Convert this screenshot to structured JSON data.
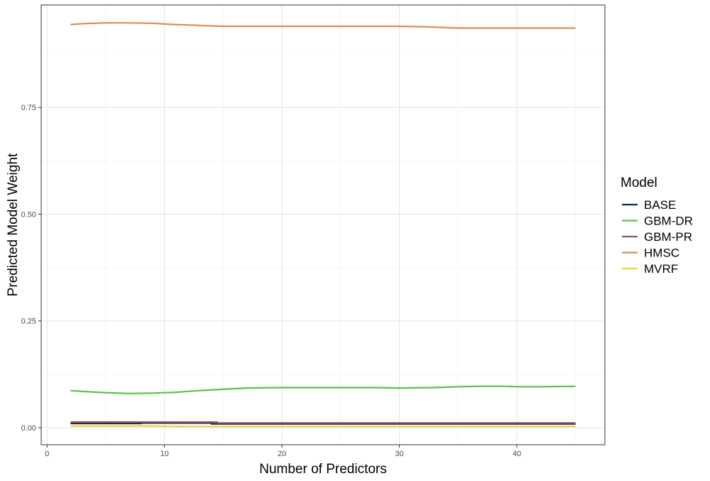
{
  "chart_data": {
    "type": "line",
    "title": "",
    "xlabel": "Number of Predictors",
    "ylabel": "Predicted Model Weight",
    "xlim": [
      -0.5,
      47.5
    ],
    "ylim": [
      -0.04,
      0.99
    ],
    "x_ticks": [
      0,
      10,
      20,
      30,
      40
    ],
    "y_ticks": [
      0.0,
      0.25,
      0.5,
      0.75
    ],
    "x_tick_labels": [
      "0",
      "10",
      "20",
      "30",
      "40"
    ],
    "y_tick_labels": [
      "0.00",
      "0.25",
      "0.50",
      "0.75"
    ],
    "x_minor_gridlines": [
      5,
      15,
      25,
      35,
      45
    ],
    "y_minor_gridlines": [
      0.125,
      0.375,
      0.625,
      0.875
    ],
    "grid": true,
    "legend": {
      "title": "Model",
      "position": "right"
    },
    "series": [
      {
        "name": "BASE",
        "color": "#0d2a40",
        "x": [
          2,
          8,
          8,
          14,
          14,
          45
        ],
        "y": [
          0.01,
          0.01,
          0.011,
          0.011,
          0.009,
          0.009
        ]
      },
      {
        "name": "GBM-DR",
        "color": "#5cbf4a",
        "x": [
          2,
          3,
          5,
          7,
          9,
          11,
          13,
          15,
          17,
          20,
          25,
          28,
          30,
          33,
          35,
          37,
          39,
          40,
          42,
          45
        ],
        "y": [
          0.087,
          0.085,
          0.082,
          0.08,
          0.081,
          0.083,
          0.087,
          0.09,
          0.093,
          0.094,
          0.094,
          0.094,
          0.093,
          0.094,
          0.096,
          0.097,
          0.097,
          0.096,
          0.096,
          0.097
        ]
      },
      {
        "name": "GBM-PR",
        "color": "#94506a",
        "x": [
          2,
          14.5,
          14.5,
          45
        ],
        "y": [
          0.013,
          0.013,
          0.011,
          0.011
        ]
      },
      {
        "name": "HMSC",
        "color": "#e8884a",
        "x": [
          2,
          3,
          5,
          7,
          9,
          11,
          13,
          15,
          20,
          25,
          30,
          32,
          35,
          40,
          45
        ],
        "y": [
          0.944,
          0.946,
          0.948,
          0.948,
          0.947,
          0.944,
          0.942,
          0.94,
          0.94,
          0.94,
          0.94,
          0.939,
          0.936,
          0.936,
          0.936
        ]
      },
      {
        "name": "MVRF",
        "color": "#f2d13c",
        "x": [
          2,
          8,
          12,
          45
        ],
        "y": [
          0.004,
          0.004,
          0.003,
          0.003
        ]
      }
    ]
  }
}
